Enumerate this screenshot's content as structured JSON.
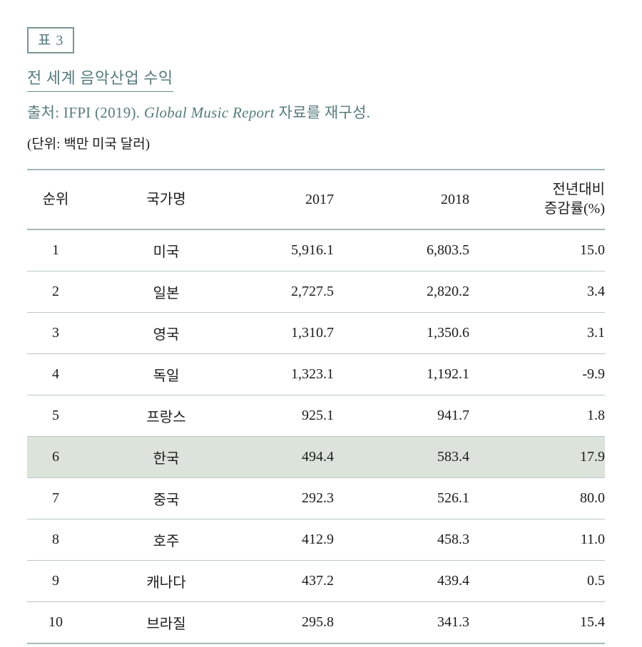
{
  "page": {
    "table_label": "표 3",
    "title": "전 세계 음악산업 수익",
    "source": {
      "prefix": "출처: IFPI (2019). ",
      "italic": "Global Music Report",
      "suffix": " 자료를 재구성."
    },
    "unit_note": "(단위: 백만 미국 달러)"
  },
  "table": {
    "headers": {
      "rank": "순위",
      "country": "국가명",
      "y2017": "2017",
      "y2018": "2018",
      "change_line1": "전년대비",
      "change_line2": "증감률(%)"
    },
    "rows": [
      {
        "rank": "1",
        "country": "미국",
        "y2017": "5,916.1",
        "y2018": "6,803.5",
        "change": "15.0"
      },
      {
        "rank": "2",
        "country": "일본",
        "y2017": "2,727.5",
        "y2018": "2,820.2",
        "change": "3.4"
      },
      {
        "rank": "3",
        "country": "영국",
        "y2017": "1,310.7",
        "y2018": "1,350.6",
        "change": "3.1"
      },
      {
        "rank": "4",
        "country": "독일",
        "y2017": "1,323.1",
        "y2018": "1,192.1",
        "change": "-9.9"
      },
      {
        "rank": "5",
        "country": "프랑스",
        "y2017": "925.1",
        "y2018": "941.7",
        "change": "1.8"
      },
      {
        "rank": "6",
        "country": "한국",
        "y2017": "494.4",
        "y2018": "583.4",
        "change": "17.9",
        "highlighted": true
      },
      {
        "rank": "7",
        "country": "중국",
        "y2017": "292.3",
        "y2018": "526.1",
        "change": "80.0"
      },
      {
        "rank": "8",
        "country": "호주",
        "y2017": "412.9",
        "y2018": "458.3",
        "change": "11.0"
      },
      {
        "rank": "9",
        "country": "캐나다",
        "y2017": "437.2",
        "y2018": "439.4",
        "change": "0.5"
      },
      {
        "rank": "10",
        "country": "브라질",
        "y2017": "295.8",
        "y2018": "341.3",
        "change": "15.4"
      }
    ]
  },
  "colors": {
    "accent_teal": "#567c7d",
    "box_border": "#7b9495",
    "highlight_bg": "#dce3da",
    "rule_inner": "#b7c7c7",
    "rule_edge": "#a3b8b9",
    "text_dark": "#1c1c1c"
  }
}
